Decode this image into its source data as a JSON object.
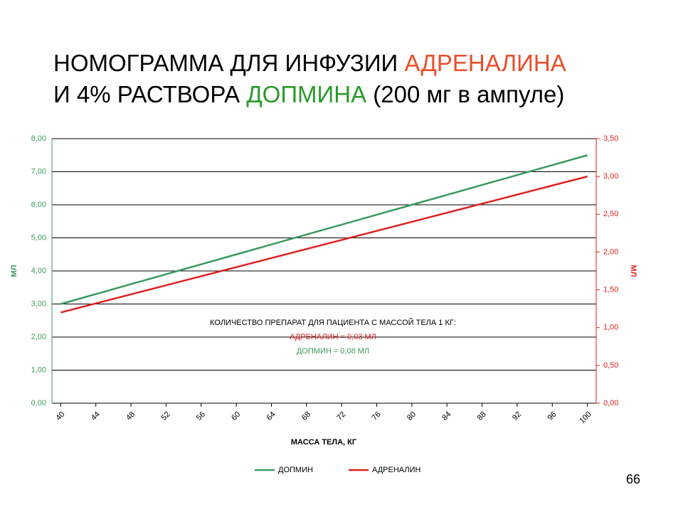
{
  "title_parts": [
    "НОМОГРАММА ДЛЯ ИНФУЗИИ ",
    "АДРЕНАЛИНА",
    "И 4% РАСТВОРА ",
    "ДОПМИНА",
    " (200 мг в ампуле)"
  ],
  "page_number": "66",
  "chart_data": {
    "type": "line",
    "x": [
      40,
      44,
      48,
      52,
      56,
      60,
      64,
      68,
      72,
      76,
      80,
      84,
      88,
      92,
      96,
      100
    ],
    "xlim": [
      39,
      101
    ],
    "xticks": [
      40,
      44,
      48,
      52,
      56,
      60,
      64,
      68,
      72,
      76,
      80,
      84,
      88,
      92,
      96,
      100
    ],
    "ylim": [
      0,
      8
    ],
    "yticks": [
      {
        "value": 0,
        "label": "0,00"
      },
      {
        "value": 1,
        "label": "1,00"
      },
      {
        "value": 2,
        "label": "2,00"
      },
      {
        "value": 3,
        "label": "3,00"
      },
      {
        "value": 4,
        "label": "4,00"
      },
      {
        "value": 5,
        "label": "5,00"
      },
      {
        "value": 6,
        "label": "6,00"
      },
      {
        "value": 7,
        "label": "7,00"
      },
      {
        "value": 8,
        "label": "8,00"
      }
    ],
    "y2lim": [
      0,
      3.5
    ],
    "y2ticks": [
      {
        "value": 0,
        "label": "0,00"
      },
      {
        "value": 0.5,
        "label": "0,50"
      },
      {
        "value": 1,
        "label": "1,00"
      },
      {
        "value": 1.5,
        "label": "1,50"
      },
      {
        "value": 2,
        "label": "2,00"
      },
      {
        "value": 2.5,
        "label": "2,50"
      },
      {
        "value": 3,
        "label": "3,00"
      },
      {
        "value": 3.5,
        "label": "3,50"
      }
    ],
    "ylabel": "МЛ",
    "y2label": "МЛ",
    "xlabel": "МАССА ТЕЛА, КГ",
    "annotations": [
      "КОЛИЧЕСТВО ПРЕПАРАТ ДЛЯ ПАЦИЕНТА С МАССОЙ ТЕЛА 1 КГ:",
      "АДРЕНАЛИН = 0,03 МЛ",
      "ДОПМИН = 0,08 МЛ"
    ],
    "grid": true,
    "series": [
      {
        "name": "ДОПМИН",
        "color": "#3a9a5c",
        "values": [
          3.0,
          3.3,
          3.6,
          3.9,
          4.2,
          4.5,
          4.8,
          5.1,
          5.4,
          5.7,
          6.0,
          6.3,
          6.6,
          6.9,
          7.2,
          7.5
        ]
      },
      {
        "name": "АДРЕНАЛИН",
        "color": "#e02020",
        "axis": "y2",
        "values": [
          1.2,
          1.32,
          1.44,
          1.56,
          1.68,
          1.8,
          1.92,
          2.04,
          2.16,
          2.28,
          2.4,
          2.52,
          2.64,
          2.76,
          2.88,
          3.0
        ]
      }
    ]
  }
}
